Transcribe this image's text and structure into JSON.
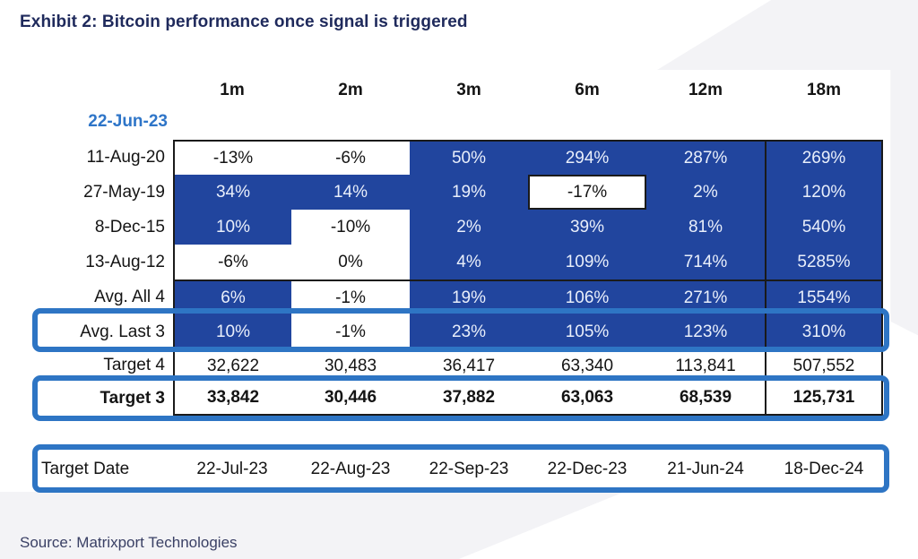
{
  "title": "Exhibit 2: Bitcoin performance once signal is triggered",
  "source": "Source: Matrixport Technologies",
  "colors": {
    "cell_blue": "#21459e",
    "highlight_border_blue": "#2e75c4",
    "signal_date_blue": "#2e75c8",
    "title_navy": "#1f2a5c",
    "border_black": "#1a1a1a"
  },
  "table": {
    "signal_date": "22-Jun-23",
    "columns": [
      "1m",
      "2m",
      "3m",
      "6m",
      "12m",
      "18m"
    ],
    "perf_rows": [
      {
        "label": "11-Aug-20",
        "cells": [
          {
            "v": "-13%",
            "blue": false
          },
          {
            "v": "-6%",
            "blue": false
          },
          {
            "v": "50%",
            "blue": true
          },
          {
            "v": "294%",
            "blue": true
          },
          {
            "v": "287%",
            "blue": true
          },
          {
            "v": "269%",
            "blue": true
          }
        ]
      },
      {
        "label": "27-May-19",
        "cells": [
          {
            "v": "34%",
            "blue": true
          },
          {
            "v": "14%",
            "blue": true
          },
          {
            "v": "19%",
            "blue": true
          },
          {
            "v": "-17%",
            "blue": false,
            "outlined": true
          },
          {
            "v": "2%",
            "blue": true
          },
          {
            "v": "120%",
            "blue": true
          }
        ]
      },
      {
        "label": "8-Dec-15",
        "cells": [
          {
            "v": "10%",
            "blue": true
          },
          {
            "v": "-10%",
            "blue": false
          },
          {
            "v": "2%",
            "blue": true
          },
          {
            "v": "39%",
            "blue": true
          },
          {
            "v": "81%",
            "blue": true
          },
          {
            "v": "540%",
            "blue": true
          }
        ]
      },
      {
        "label": "13-Aug-12",
        "cells": [
          {
            "v": "-6%",
            "blue": false
          },
          {
            "v": "0%",
            "blue": false
          },
          {
            "v": "4%",
            "blue": true
          },
          {
            "v": "109%",
            "blue": true
          },
          {
            "v": "714%",
            "blue": true
          },
          {
            "v": "5285%",
            "blue": true
          }
        ]
      },
      {
        "label": "Avg. All 4",
        "separator_top": true,
        "cells": [
          {
            "v": "6%",
            "blue": true
          },
          {
            "v": "-1%",
            "blue": false
          },
          {
            "v": "19%",
            "blue": true
          },
          {
            "v": "106%",
            "blue": true
          },
          {
            "v": "271%",
            "blue": true
          },
          {
            "v": "1554%",
            "blue": true
          }
        ]
      },
      {
        "label": "Avg. Last 3",
        "highlighted": true,
        "cells": [
          {
            "v": "10%",
            "blue": true
          },
          {
            "v": "-1%",
            "blue": false
          },
          {
            "v": "23%",
            "blue": true
          },
          {
            "v": "105%",
            "blue": true
          },
          {
            "v": "123%",
            "blue": true
          },
          {
            "v": "310%",
            "blue": true
          }
        ]
      }
    ],
    "target_rows": [
      {
        "label": "Target 4",
        "bold": false,
        "values": [
          "32,622",
          "30,483",
          "36,417",
          "63,340",
          "113,841",
          "507,552"
        ]
      },
      {
        "label": "Target 3",
        "bold": true,
        "highlighted": true,
        "values": [
          "33,842",
          "30,446",
          "37,882",
          "63,063",
          "68,539",
          "125,731"
        ]
      }
    ],
    "target_date_row": {
      "label": "Target Date",
      "highlighted": true,
      "values": [
        "22-Jul-23",
        "22-Aug-23",
        "22-Sep-23",
        "22-Dec-23",
        "21-Jun-24",
        "18-Dec-24"
      ]
    }
  },
  "chart_data": {
    "type": "table",
    "title": "Exhibit 2: Bitcoin performance once signal is triggered",
    "signal_date": "22-Jun-23",
    "columns_horizon": [
      "1m",
      "2m",
      "3m",
      "6m",
      "12m",
      "18m"
    ],
    "performance_pct": {
      "11-Aug-20": [
        -13,
        -6,
        50,
        294,
        287,
        269
      ],
      "27-May-19": [
        34,
        14,
        19,
        -17,
        2,
        120
      ],
      "8-Dec-15": [
        10,
        -10,
        2,
        39,
        81,
        540
      ],
      "13-Aug-12": [
        -6,
        0,
        4,
        109,
        714,
        5285
      ],
      "Avg. All 4": [
        6,
        -1,
        19,
        106,
        271,
        1554
      ],
      "Avg. Last 3": [
        10,
        -1,
        23,
        105,
        123,
        310
      ]
    },
    "price_targets": {
      "Target 4": [
        32622,
        30483,
        36417,
        63340,
        113841,
        507552
      ],
      "Target 3": [
        33842,
        30446,
        37882,
        63063,
        68539,
        125731
      ]
    },
    "target_dates": [
      "22-Jul-23",
      "22-Aug-23",
      "22-Sep-23",
      "22-Dec-23",
      "21-Jun-24",
      "18-Dec-24"
    ],
    "highlighted_rows": [
      "Avg. Last 3",
      "Target 3",
      "Target Date"
    ],
    "source": "Source: Matrixport Technologies"
  }
}
